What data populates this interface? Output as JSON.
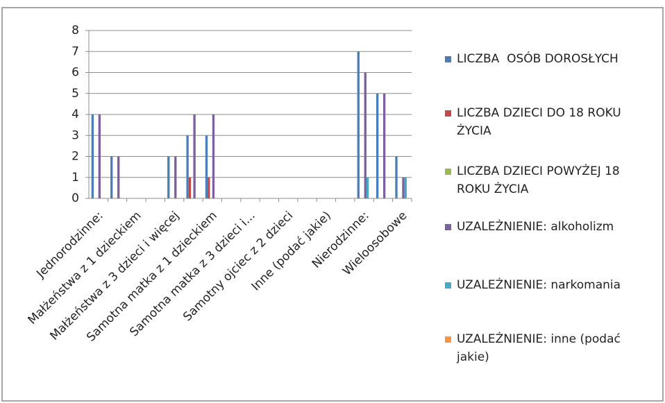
{
  "chart_data": {
    "type": "bar",
    "categories": [
      "Jednorodzinne:",
      null,
      "Małżeństwa z 1 dzieckiem",
      null,
      "Małżeństwa z 3 dzieci i więcej",
      null,
      "Samotna matka z 1 dzieckiem",
      null,
      "Samotna matka z 3 dzieci i...",
      null,
      "Samotny ojciec z 2 dzieci",
      null,
      "Inne (podać jakie)",
      null,
      "Nierodzinne:",
      null,
      "Wieloosobowe"
    ],
    "series": [
      {
        "name": "LICZBA  OSÓB DOROSŁYCH",
        "color": "#4a7ebb",
        "values": [
          4,
          2,
          0,
          0,
          2,
          3,
          3,
          0,
          0,
          0,
          0,
          0,
          0,
          0,
          7,
          5,
          2
        ]
      },
      {
        "name": "LICZBA DZIECI DO 18 ROKU ŻYCIA",
        "color": "#be4b48",
        "values": [
          0,
          0,
          0,
          0,
          0,
          1,
          1,
          0,
          0,
          0,
          0,
          0,
          0,
          0,
          0,
          0,
          0
        ]
      },
      {
        "name": "LICZBA DZIECI POWYŻEJ 18 ROKU ŻYCIA",
        "color": "#98b954",
        "values": [
          0,
          0,
          0,
          0,
          0,
          0,
          0,
          0,
          0,
          0,
          0,
          0,
          0,
          0,
          0,
          0,
          0
        ]
      },
      {
        "name": "UZALEŻNIENIE: alkoholizm",
        "color": "#7d60a0",
        "values": [
          4,
          2,
          0,
          0,
          2,
          4,
          4,
          0,
          0,
          0,
          0,
          0,
          0,
          0,
          6,
          5,
          1
        ]
      },
      {
        "name": "UZALEŻNIENIE: narkomania",
        "color": "#46aac5",
        "values": [
          0,
          0,
          0,
          0,
          0,
          0,
          0,
          0,
          0,
          0,
          0,
          0,
          0,
          0,
          1,
          0,
          1
        ]
      },
      {
        "name": "UZALEŻNIENIE: inne (podać jakie)",
        "color": "#f79646",
        "values": [
          0,
          0,
          0,
          0,
          0,
          0,
          0,
          0,
          0,
          0,
          0,
          0,
          0,
          0,
          0,
          0,
          0
        ]
      }
    ],
    "ylim": [
      0,
      8
    ],
    "yticks": [
      0,
      1,
      2,
      3,
      4,
      5,
      6,
      7,
      8
    ],
    "grid": true,
    "legend": "right"
  }
}
